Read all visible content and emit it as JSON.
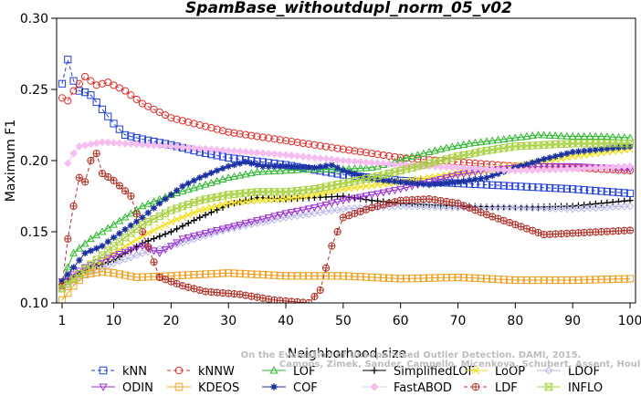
{
  "chart_data": {
    "type": "line",
    "title": "SpamBase_withoutdupl_norm_05_v02",
    "xlabel": "Neighborhood size",
    "ylabel": "Maximum F1",
    "xlim": [
      1,
      100
    ],
    "ylim": [
      0.1,
      0.3
    ],
    "xticks": [
      "1",
      "10",
      "20",
      "30",
      "40",
      "50",
      "60",
      "70",
      "80",
      "90",
      "100"
    ],
    "yticks": [
      "0.10",
      "0.15",
      "0.20",
      "0.25",
      "0.30"
    ],
    "watermark": [
      "Campos, Zimek, Sander, Campello, Micenkova, Schubert, Assent, Houle",
      "On the Evaluation of Unsupervised Outlier Detection. DAMI, 2015."
    ],
    "series": [
      {
        "name": "kNN",
        "color": "#1f3fd6",
        "marker": "square",
        "dashed": true,
        "knots": [
          [
            1,
            0.254
          ],
          [
            2,
            0.271
          ],
          [
            3,
            0.256
          ],
          [
            4,
            0.249
          ],
          [
            5,
            0.248
          ],
          [
            6,
            0.246
          ],
          [
            8,
            0.236
          ],
          [
            10,
            0.226
          ],
          [
            12,
            0.218
          ],
          [
            15,
            0.215
          ],
          [
            20,
            0.211
          ],
          [
            25,
            0.206
          ],
          [
            30,
            0.202
          ],
          [
            40,
            0.197
          ],
          [
            50,
            0.19
          ],
          [
            60,
            0.186
          ],
          [
            70,
            0.184
          ],
          [
            80,
            0.182
          ],
          [
            90,
            0.18
          ],
          [
            100,
            0.177
          ]
        ]
      },
      {
        "name": "kNNW",
        "color": "#e0312b",
        "marker": "circle",
        "dashed": true,
        "knots": [
          [
            1,
            0.244
          ],
          [
            2,
            0.242
          ],
          [
            3,
            0.249
          ],
          [
            5,
            0.259
          ],
          [
            7,
            0.253
          ],
          [
            9,
            0.255
          ],
          [
            12,
            0.249
          ],
          [
            15,
            0.24
          ],
          [
            20,
            0.23
          ],
          [
            30,
            0.22
          ],
          [
            40,
            0.214
          ],
          [
            50,
            0.208
          ],
          [
            60,
            0.202
          ],
          [
            70,
            0.199
          ],
          [
            80,
            0.196
          ],
          [
            90,
            0.195
          ],
          [
            100,
            0.193
          ]
        ]
      },
      {
        "name": "LOF",
        "color": "#2fb82f",
        "marker": "triangle-up",
        "knots": [
          [
            1,
            0.115
          ],
          [
            3,
            0.135
          ],
          [
            6,
            0.145
          ],
          [
            10,
            0.155
          ],
          [
            15,
            0.168
          ],
          [
            20,
            0.176
          ],
          [
            25,
            0.182
          ],
          [
            30,
            0.188
          ],
          [
            35,
            0.192
          ],
          [
            40,
            0.193
          ],
          [
            45,
            0.194
          ],
          [
            50,
            0.194
          ],
          [
            55,
            0.195
          ],
          [
            58,
            0.198
          ],
          [
            62,
            0.203
          ],
          [
            68,
            0.209
          ],
          [
            72,
            0.212
          ],
          [
            78,
            0.215
          ],
          [
            84,
            0.218
          ],
          [
            90,
            0.217
          ],
          [
            95,
            0.217
          ],
          [
            100,
            0.216
          ]
        ]
      },
      {
        "name": "SimplifiedLOF",
        "color": "#000000",
        "marker": "plus",
        "knots": [
          [
            1,
            0.113
          ],
          [
            5,
            0.123
          ],
          [
            10,
            0.13
          ],
          [
            15,
            0.142
          ],
          [
            20,
            0.15
          ],
          [
            25,
            0.16
          ],
          [
            30,
            0.169
          ],
          [
            35,
            0.174
          ],
          [
            40,
            0.173
          ],
          [
            45,
            0.174
          ],
          [
            50,
            0.175
          ],
          [
            55,
            0.172
          ],
          [
            60,
            0.17
          ],
          [
            70,
            0.168
          ],
          [
            80,
            0.167
          ],
          [
            90,
            0.168
          ],
          [
            100,
            0.172
          ]
        ]
      },
      {
        "name": "LoOP",
        "color": "#f0e020",
        "marker": "x",
        "knots": [
          [
            1,
            0.112
          ],
          [
            5,
            0.12
          ],
          [
            10,
            0.135
          ],
          [
            15,
            0.147
          ],
          [
            20,
            0.157
          ],
          [
            25,
            0.165
          ],
          [
            30,
            0.17
          ],
          [
            35,
            0.172
          ],
          [
            40,
            0.173
          ],
          [
            45,
            0.176
          ],
          [
            50,
            0.18
          ],
          [
            60,
            0.185
          ],
          [
            70,
            0.191
          ],
          [
            80,
            0.196
          ],
          [
            90,
            0.203
          ],
          [
            100,
            0.208
          ]
        ]
      },
      {
        "name": "LDOF",
        "color": "#b8b8e8",
        "marker": "diamond",
        "knots": [
          [
            1,
            0.11
          ],
          [
            5,
            0.12
          ],
          [
            10,
            0.128
          ],
          [
            15,
            0.135
          ],
          [
            20,
            0.14
          ],
          [
            25,
            0.146
          ],
          [
            30,
            0.152
          ],
          [
            35,
            0.156
          ],
          [
            40,
            0.16
          ],
          [
            45,
            0.163
          ],
          [
            50,
            0.166
          ],
          [
            60,
            0.168
          ],
          [
            70,
            0.167
          ],
          [
            80,
            0.167
          ],
          [
            90,
            0.166
          ],
          [
            100,
            0.168
          ]
        ]
      },
      {
        "name": "ODIN",
        "color": "#9c2fd6",
        "marker": "triangle-down",
        "knots": [
          [
            1,
            0.115
          ],
          [
            5,
            0.125
          ],
          [
            10,
            0.133
          ],
          [
            15,
            0.14
          ],
          [
            18,
            0.135
          ],
          [
            22,
            0.145
          ],
          [
            25,
            0.148
          ],
          [
            30,
            0.153
          ],
          [
            35,
            0.158
          ],
          [
            40,
            0.163
          ],
          [
            45,
            0.167
          ],
          [
            50,
            0.172
          ],
          [
            55,
            0.176
          ],
          [
            60,
            0.18
          ],
          [
            65,
            0.185
          ],
          [
            70,
            0.19
          ],
          [
            75,
            0.193
          ],
          [
            80,
            0.195
          ],
          [
            85,
            0.196
          ],
          [
            90,
            0.196
          ],
          [
            95,
            0.195
          ],
          [
            100,
            0.194
          ]
        ]
      },
      {
        "name": "KDEOS",
        "color": "#f0a020",
        "marker": "square",
        "knots": [
          [
            1,
            0.102
          ],
          [
            3,
            0.112
          ],
          [
            5,
            0.12
          ],
          [
            8,
            0.122
          ],
          [
            10,
            0.121
          ],
          [
            14,
            0.118
          ],
          [
            20,
            0.119
          ],
          [
            30,
            0.121
          ],
          [
            40,
            0.119
          ],
          [
            50,
            0.119
          ],
          [
            60,
            0.117
          ],
          [
            70,
            0.118
          ],
          [
            80,
            0.116
          ],
          [
            90,
            0.116
          ],
          [
            100,
            0.117
          ]
        ]
      },
      {
        "name": "COF",
        "color": "#1a2fa0",
        "marker": "asterisk",
        "knots": [
          [
            1,
            0.115
          ],
          [
            3,
            0.125
          ],
          [
            5,
            0.135
          ],
          [
            8,
            0.14
          ],
          [
            10,
            0.146
          ],
          [
            15,
            0.16
          ],
          [
            18,
            0.17
          ],
          [
            22,
            0.182
          ],
          [
            25,
            0.188
          ],
          [
            28,
            0.193
          ],
          [
            30,
            0.196
          ],
          [
            33,
            0.199
          ],
          [
            36,
            0.196
          ],
          [
            40,
            0.196
          ],
          [
            45,
            0.195
          ],
          [
            48,
            0.197
          ],
          [
            50,
            0.193
          ],
          [
            55,
            0.187
          ],
          [
            60,
            0.185
          ],
          [
            65,
            0.183
          ],
          [
            70,
            0.185
          ],
          [
            75,
            0.188
          ],
          [
            80,
            0.195
          ],
          [
            85,
            0.201
          ],
          [
            90,
            0.206
          ],
          [
            95,
            0.208
          ],
          [
            100,
            0.21
          ]
        ]
      },
      {
        "name": "FastABOD",
        "color": "#f6bef0",
        "marker": "diamond-filled",
        "knots": [
          [
            2,
            0.198
          ],
          [
            3,
            0.205
          ],
          [
            4,
            0.21
          ],
          [
            8,
            0.213
          ],
          [
            12,
            0.212
          ],
          [
            20,
            0.21
          ],
          [
            30,
            0.207
          ],
          [
            40,
            0.204
          ],
          [
            50,
            0.2
          ],
          [
            60,
            0.197
          ],
          [
            70,
            0.195
          ],
          [
            80,
            0.193
          ],
          [
            90,
            0.194
          ],
          [
            100,
            0.196
          ]
        ]
      },
      {
        "name": "LDF",
        "color": "#b03028",
        "marker": "circle-plus",
        "dashed": true,
        "knots": [
          [
            1,
            0.112
          ],
          [
            2,
            0.145
          ],
          [
            3,
            0.168
          ],
          [
            4,
            0.188
          ],
          [
            5,
            0.185
          ],
          [
            6,
            0.2
          ],
          [
            7,
            0.205
          ],
          [
            8,
            0.191
          ],
          [
            10,
            0.186
          ],
          [
            13,
            0.175
          ],
          [
            15,
            0.15
          ],
          [
            18,
            0.118
          ],
          [
            22,
            0.112
          ],
          [
            26,
            0.108
          ],
          [
            32,
            0.106
          ],
          [
            38,
            0.102
          ],
          [
            44,
            0.1
          ],
          [
            46,
            0.109
          ],
          [
            48,
            0.14
          ],
          [
            50,
            0.16
          ],
          [
            55,
            0.167
          ],
          [
            60,
            0.172
          ],
          [
            65,
            0.173
          ],
          [
            70,
            0.17
          ],
          [
            75,
            0.162
          ],
          [
            80,
            0.155
          ],
          [
            85,
            0.148
          ],
          [
            90,
            0.149
          ],
          [
            100,
            0.151
          ]
        ]
      },
      {
        "name": "INFLO",
        "color": "#a8d040",
        "marker": "square-x",
        "knots": [
          [
            1,
            0.11
          ],
          [
            5,
            0.124
          ],
          [
            10,
            0.14
          ],
          [
            15,
            0.155
          ],
          [
            20,
            0.165
          ],
          [
            25,
            0.172
          ],
          [
            30,
            0.176
          ],
          [
            35,
            0.178
          ],
          [
            40,
            0.178
          ],
          [
            45,
            0.18
          ],
          [
            50,
            0.184
          ],
          [
            55,
            0.188
          ],
          [
            60,
            0.193
          ],
          [
            65,
            0.198
          ],
          [
            70,
            0.203
          ],
          [
            75,
            0.207
          ],
          [
            80,
            0.21
          ],
          [
            85,
            0.211
          ],
          [
            90,
            0.212
          ],
          [
            95,
            0.212
          ],
          [
            100,
            0.212
          ]
        ]
      }
    ]
  }
}
